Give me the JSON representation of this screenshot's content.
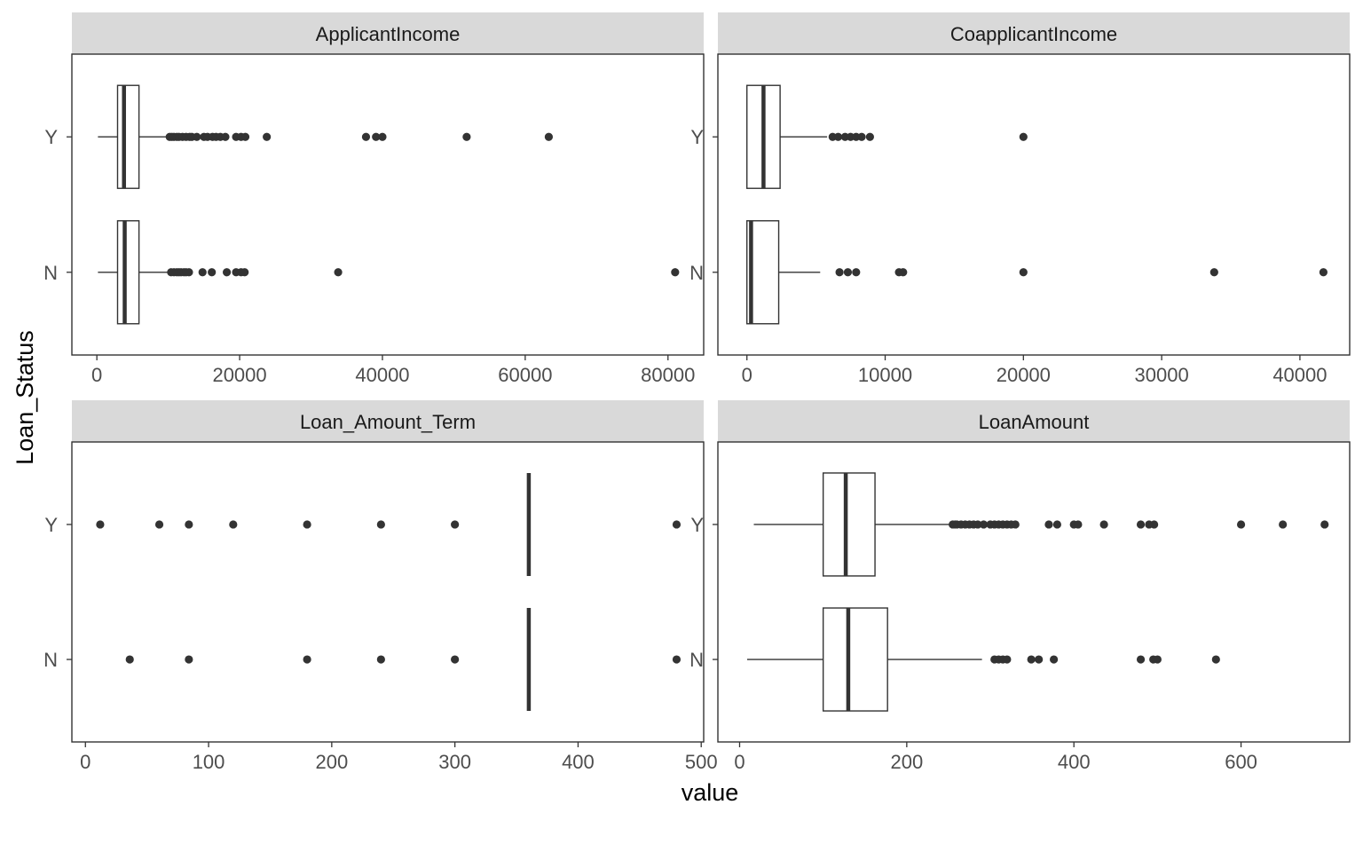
{
  "chart_data": {
    "type": "boxplot",
    "xlabel": "value",
    "ylabel": "Loan_Status",
    "categories": [
      "Y",
      "N"
    ],
    "panels": [
      {
        "title": "ApplicantIncome",
        "xlim": [
          -3500,
          85000
        ],
        "xticks": [
          0,
          20000,
          40000,
          60000,
          80000
        ],
        "xtick_labels": [
          "0",
          "20000",
          "40000",
          "60000",
          "80000"
        ],
        "series": [
          {
            "name": "Y",
            "whisker_low": 150,
            "q1": 2900,
            "median": 3800,
            "q3": 5900,
            "whisker_high": 9700,
            "outliers": [
              10200,
              10500,
              10800,
              11200,
              11500,
              12000,
              12500,
              13000,
              13300,
              14000,
              15000,
              15500,
              16200,
              16700,
              17300,
              18000,
              19500,
              20200,
              20800,
              23800,
              37700,
              39100,
              40000,
              51800,
              63300
            ]
          },
          {
            "name": "N",
            "whisker_low": 150,
            "q1": 2900,
            "median": 3900,
            "q3": 5900,
            "whisker_high": 10000,
            "outliers": [
              10400,
              10800,
              11200,
              11500,
              11800,
              12200,
              12500,
              12900,
              14800,
              16100,
              18200,
              19500,
              20200,
              20700,
              33800,
              81000
            ]
          }
        ]
      },
      {
        "title": "CoapplicantIncome",
        "xlim": [
          -2100,
          43600
        ],
        "xticks": [
          0,
          10000,
          20000,
          30000,
          40000
        ],
        "xtick_labels": [
          "0",
          "10000",
          "20000",
          "30000",
          "40000"
        ],
        "series": [
          {
            "name": "Y",
            "whisker_low": 0,
            "q1": 0,
            "median": 1200,
            "q3": 2400,
            "whisker_high": 5800,
            "outliers": [
              6200,
              6600,
              7100,
              7500,
              7900,
              8300,
              8900,
              20000
            ]
          },
          {
            "name": "N",
            "whisker_low": 0,
            "q1": 0,
            "median": 300,
            "q3": 2300,
            "whisker_high": 5300,
            "outliers": [
              6700,
              7300,
              7900,
              11000,
              11300,
              20000,
              33800,
              41700
            ]
          }
        ]
      },
      {
        "title": "Loan_Amount_Term",
        "xlim": [
          -11,
          502
        ],
        "xticks": [
          0,
          100,
          200,
          300,
          400,
          500
        ],
        "xtick_labels": [
          "0",
          "100",
          "200",
          "300",
          "400",
          "500"
        ],
        "series": [
          {
            "name": "Y",
            "whisker_low": 360,
            "q1": 360,
            "median": 360,
            "q3": 360,
            "whisker_high": 360,
            "outliers": [
              12,
              60,
              84,
              120,
              180,
              240,
              300,
              480
            ]
          },
          {
            "name": "N",
            "whisker_low": 360,
            "q1": 360,
            "median": 360,
            "q3": 360,
            "whisker_high": 360,
            "outliers": [
              36,
              84,
              180,
              240,
              300,
              480
            ]
          }
        ]
      },
      {
        "title": "LoanAmount",
        "xlim": [
          -26,
          730
        ],
        "xticks": [
          0,
          200,
          400,
          600
        ],
        "xtick_labels": [
          "0",
          "200",
          "400",
          "600"
        ],
        "series": [
          {
            "name": "Y",
            "whisker_low": 17,
            "q1": 100,
            "median": 127,
            "q3": 162,
            "whisker_high": 253,
            "outliers": [
              255,
              258,
              260,
              265,
              270,
              275,
              280,
              285,
              292,
              300,
              305,
              310,
              315,
              320,
              325,
              330,
              370,
              380,
              400,
              405,
              436,
              480,
              490,
              496,
              600,
              650,
              700
            ]
          },
          {
            "name": "N",
            "whisker_low": 9,
            "q1": 100,
            "median": 130,
            "q3": 177,
            "whisker_high": 290,
            "outliers": [
              305,
              310,
              315,
              320,
              349,
              358,
              376,
              480,
              495,
              500,
              570
            ]
          }
        ]
      }
    ]
  }
}
